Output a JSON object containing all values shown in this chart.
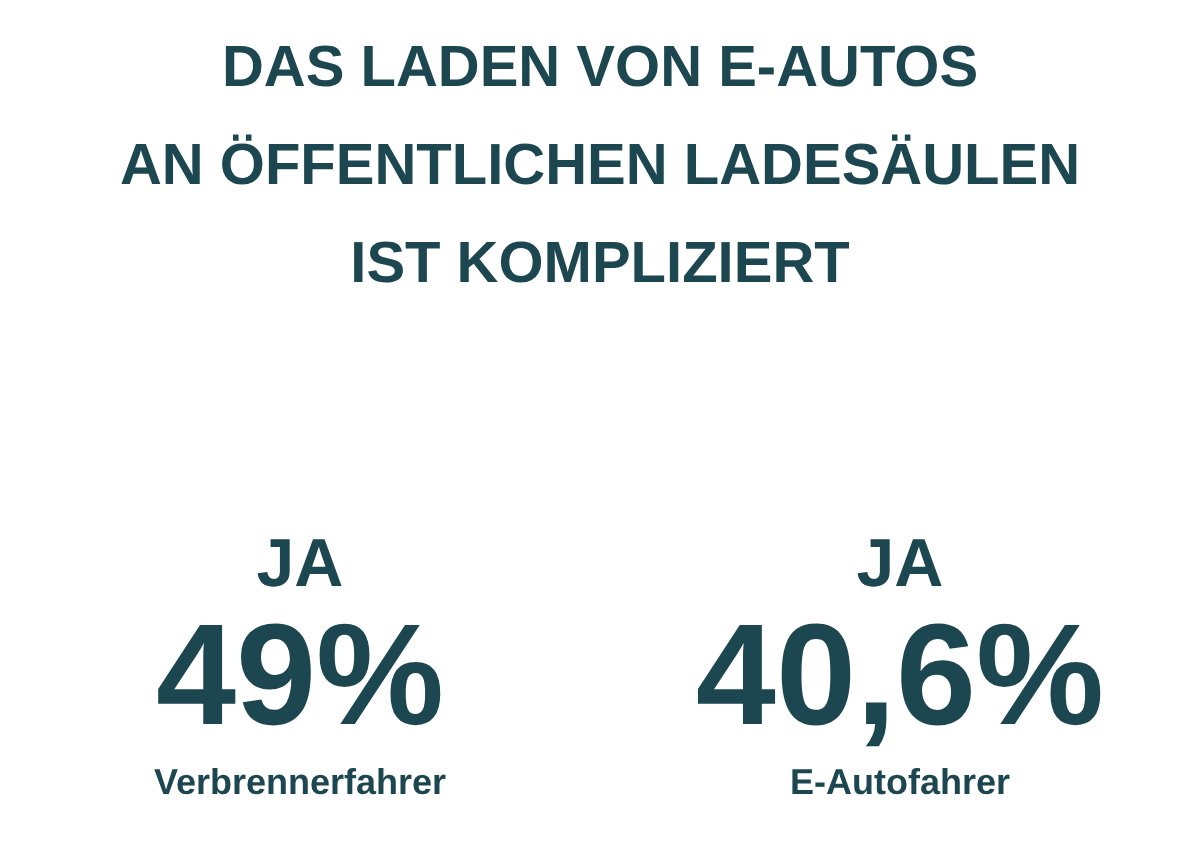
{
  "chart_data": {
    "type": "other",
    "title": "DAS LADEN VON E-AUTOS\nAN ÖFFENTLICHEN LADESÄULEN\nIST KOMPLIZIERT",
    "categories": [
      "Verbrennerfahrer",
      "E-Autofahrer"
    ],
    "values": [
      49,
      40.6
    ],
    "value_labels": [
      "49%",
      "40,6%"
    ],
    "annotations": [
      "JA",
      "JA"
    ],
    "color": "#1d4750"
  }
}
